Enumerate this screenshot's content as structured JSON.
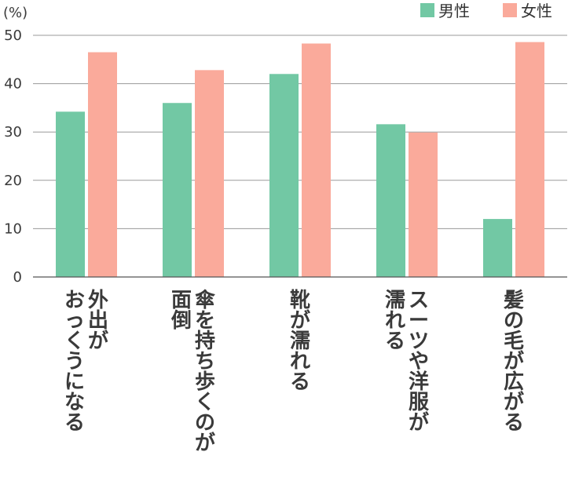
{
  "chart_data": {
    "type": "bar",
    "unit_label": "(%)",
    "categories": [
      [
        "外出が",
        "おっくうになる"
      ],
      [
        "傘を持ち歩くのが",
        "面倒"
      ],
      [
        "靴が濡れる"
      ],
      [
        "スーツや洋服が",
        "濡れる"
      ],
      [
        "髪の毛が広がる"
      ]
    ],
    "series": [
      {
        "name": "男性",
        "color": "#72c8a4",
        "values": [
          34.2,
          36,
          42,
          31.6,
          12
        ]
      },
      {
        "name": "女性",
        "color": "#faaa9b",
        "values": [
          46.5,
          42.8,
          48.3,
          29.9,
          48.6
        ]
      }
    ],
    "ylim": [
      0,
      50
    ],
    "yticks": [
      0,
      10,
      20,
      30,
      40,
      50
    ],
    "grid": true,
    "legend_position": "top-right"
  }
}
